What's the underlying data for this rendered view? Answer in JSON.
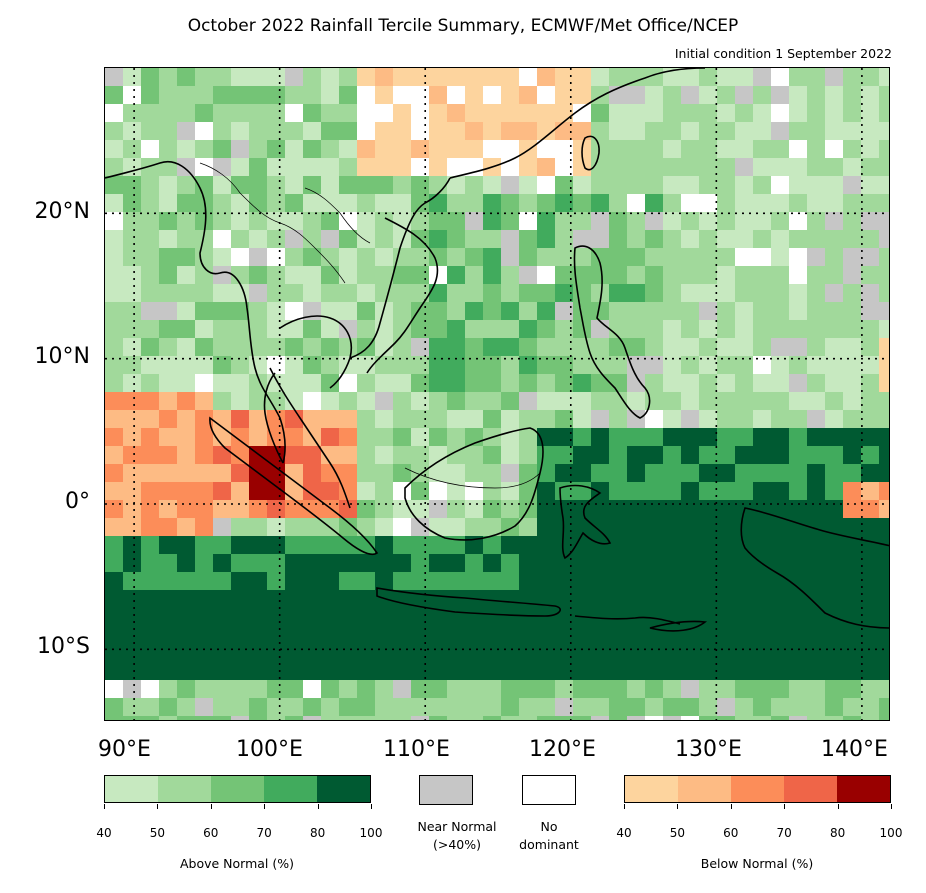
{
  "title": "October 2022 Rainfall Tercile Summary, ECMWF/Met Office/NCEP",
  "subtitle": "Initial condition 1 September 2022",
  "map": {
    "lat_labels": [
      "20°N",
      "10°N",
      "0°",
      "10°S"
    ],
    "lon_labels": [
      "90°E",
      "100°E",
      "110°E",
      "120°E",
      "130°E",
      "140°E"
    ],
    "grid_style": "dotted",
    "extent": {
      "lon": [
        88,
        142
      ],
      "lat": [
        -15,
        30
      ]
    }
  },
  "legend": {
    "above_normal": {
      "label": "Above Normal (%)",
      "ticks": [
        "40",
        "50",
        "60",
        "70",
        "80",
        "100"
      ],
      "colors": [
        "#c7e9c0",
        "#a1d99b",
        "#74c476",
        "#41ab5d",
        "#005a32"
      ]
    },
    "near_normal": {
      "label": "Near Normal\n(>40%)",
      "color": "#c6c6c6"
    },
    "no_dominant": {
      "label": "No\ndominant",
      "color": "#ffffff"
    },
    "below_normal": {
      "label": "Below Normal (%)",
      "ticks": [
        "40",
        "50",
        "60",
        "70",
        "80",
        "100"
      ],
      "colors": [
        "#fdd49e",
        "#fdbb84",
        "#fc8d59",
        "#ef6548",
        "#990000"
      ]
    }
  }
}
